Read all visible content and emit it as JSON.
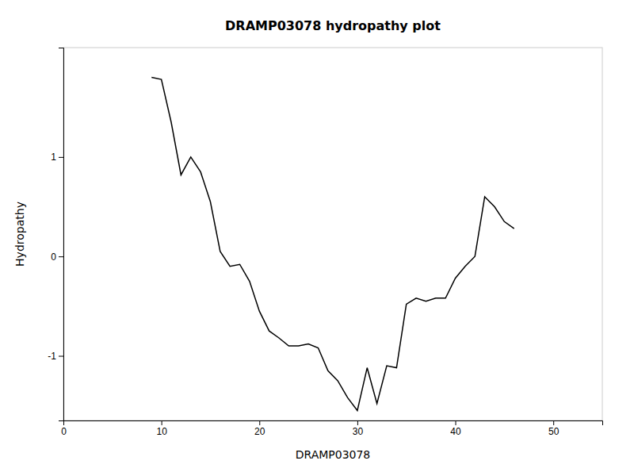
{
  "chart_data": {
    "type": "line",
    "title": "DRAMP03078 hydropathy plot",
    "xlabel": "DRAMP03078",
    "ylabel": "Hydropathy",
    "x": [
      9,
      10,
      11,
      12,
      13,
      14,
      15,
      16,
      17,
      18,
      19,
      20,
      21,
      22,
      23,
      24,
      25,
      26,
      27,
      28,
      29,
      30,
      31,
      32,
      33,
      34,
      35,
      36,
      37,
      38,
      39,
      40,
      41,
      42,
      43,
      44,
      45,
      46
    ],
    "values": [
      1.8,
      1.78,
      1.35,
      0.82,
      1.0,
      0.85,
      0.55,
      0.05,
      -0.1,
      -0.08,
      -0.25,
      -0.55,
      -0.75,
      -0.82,
      -0.9,
      -0.9,
      -0.88,
      -0.92,
      -1.15,
      -1.25,
      -1.42,
      -1.55,
      -1.12,
      -1.48,
      -1.1,
      -1.12,
      -0.48,
      -0.42,
      -0.45,
      -0.42,
      -0.42,
      -0.22,
      -0.1,
      0.0,
      0.6,
      0.5,
      0.35,
      0.28
    ],
    "color": "black",
    "xlim": [
      0,
      55
    ],
    "ylim": [
      -1.65,
      2.1
    ],
    "xticks": [
      0,
      10,
      20,
      30,
      40,
      50
    ],
    "yticks": [
      -1,
      0,
      1
    ],
    "grid": false
  }
}
